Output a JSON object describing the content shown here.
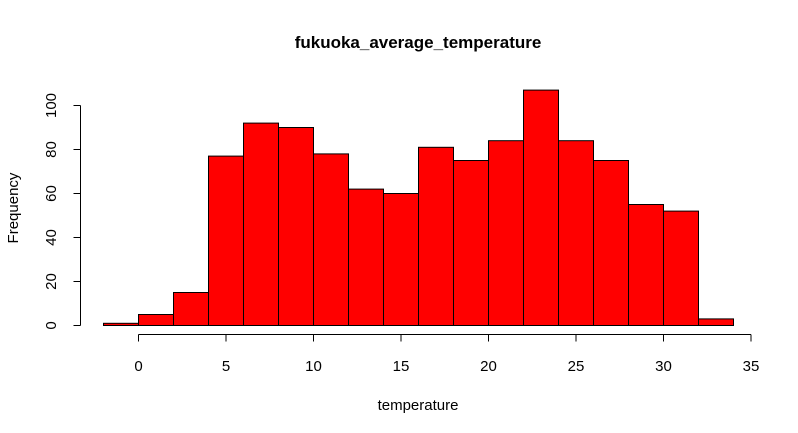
{
  "chart_data": {
    "type": "bar",
    "title": "fukuoka_average_temperature",
    "xlabel": "temperature",
    "ylabel": "Frequency",
    "bar_color": "#ff0000",
    "bin_edges": [
      -2,
      0,
      2,
      4,
      6,
      8,
      10,
      12,
      14,
      16,
      18,
      20,
      22,
      24,
      26,
      28,
      30,
      32,
      34
    ],
    "values": [
      1,
      5,
      15,
      77,
      92,
      90,
      78,
      62,
      60,
      81,
      75,
      84,
      107,
      84,
      75,
      55,
      52,
      3
    ],
    "xlim": [
      -2,
      35
    ],
    "ylim": [
      0,
      107
    ],
    "x_ticks": [
      "0",
      "5",
      "10",
      "15",
      "20",
      "25",
      "30",
      "35"
    ],
    "y_ticks": [
      "0",
      "20",
      "40",
      "60",
      "80",
      "100"
    ]
  }
}
